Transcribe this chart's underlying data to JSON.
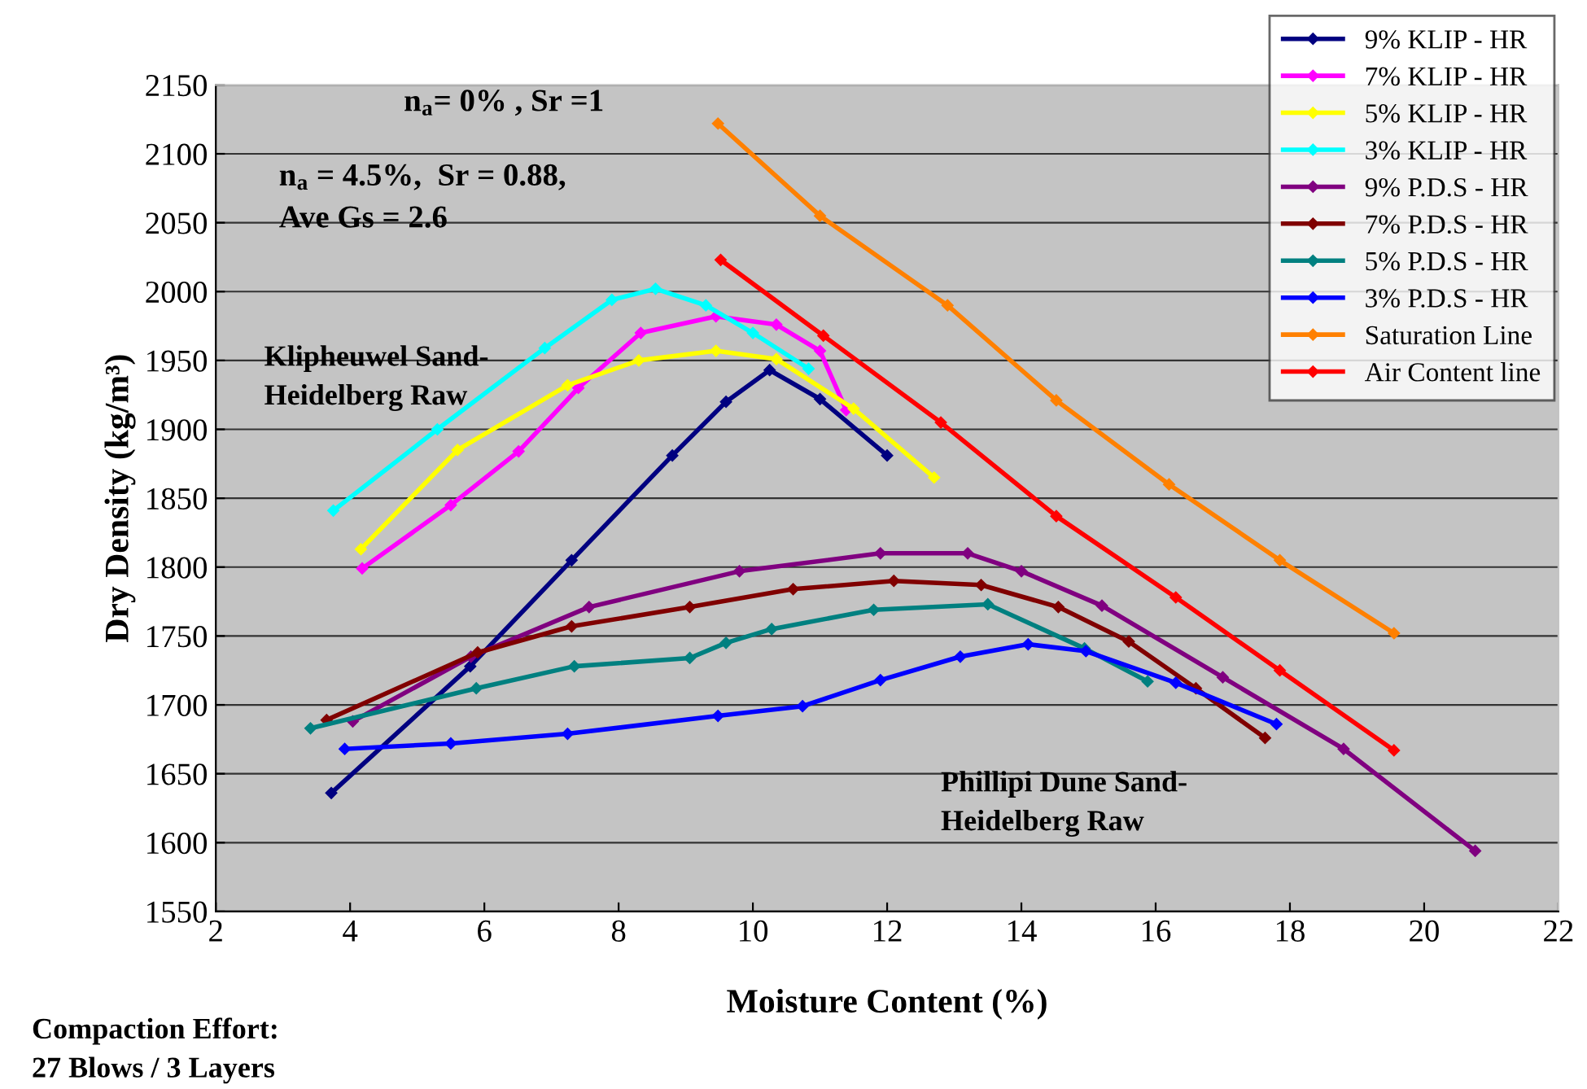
{
  "chart_data": {
    "type": "line",
    "xlabel": "Moisture Content (%)",
    "ylabel": "Dry Density (kg/m³)",
    "xlim": [
      2,
      22
    ],
    "xticks": [
      2,
      4,
      6,
      8,
      10,
      12,
      14,
      16,
      18,
      20,
      22
    ],
    "ylim": [
      1550,
      2150
    ],
    "yticks": [
      1550,
      1600,
      1650,
      1700,
      1750,
      1800,
      1850,
      1900,
      1950,
      2000,
      2050,
      2100,
      2150
    ],
    "grid": "y",
    "legend": "top right",
    "marker": "diamond",
    "line_style": "solid",
    "annotations": [
      "n$_{a}$= 0% , Sr =1",
      "n$_{a}$ = 4.5%,  Sr = 0.88,\nAve Gs = 2.6",
      "Klipheuwel Sand-\nHeidelberg Raw",
      "Phillipi Dune Sand-\nHeidelberg Raw",
      "Compaction Effort:\n27 Blows / 3 Layers"
    ],
    "series": [
      {
        "name": "9% KLIP - HR",
        "color": "#000080",
        "x": [
          3.72,
          5.79,
          7.3,
          8.8,
          9.6,
          10.25,
          11.0,
          12.0
        ],
        "values": [
          1636,
          1728,
          1805,
          1881,
          1920,
          1943,
          1922,
          1881
        ]
      },
      {
        "name": "7% KLIP - HR",
        "color": "#ff00ff",
        "x": [
          4.18,
          5.5,
          6.51,
          7.4,
          8.33,
          9.45,
          10.35,
          11.0,
          11.39
        ],
        "values": [
          1799,
          1845,
          1884,
          1930,
          1970,
          1982,
          1976,
          1957,
          1914
        ]
      },
      {
        "name": "5% KLIP - HR",
        "color": "#ffff00",
        "x": [
          4.16,
          5.6,
          7.24,
          8.3,
          9.45,
          10.35,
          11.5,
          12.7
        ],
        "values": [
          1813,
          1885,
          1932,
          1950,
          1957,
          1951,
          1915,
          1865
        ]
      },
      {
        "name": "3% KLIP - HR",
        "color": "#00ffff",
        "x": [
          3.75,
          5.3,
          6.9,
          7.9,
          8.55,
          9.3,
          10.0,
          10.83
        ],
        "values": [
          1841,
          1900,
          1959,
          1994,
          2002,
          1990,
          1970,
          1944
        ]
      },
      {
        "name": "9% P.D.S - HR",
        "color": "#800080",
        "x": [
          4.04,
          5.8,
          7.56,
          9.8,
          11.9,
          13.2,
          14.0,
          15.2,
          17.0,
          18.8,
          20.76
        ],
        "values": [
          1688,
          1735,
          1771,
          1797,
          1810,
          1810,
          1797,
          1772,
          1720,
          1668,
          1594
        ]
      },
      {
        "name": "7% P.D.S - HR",
        "color": "#800000",
        "x": [
          3.65,
          5.9,
          7.3,
          9.06,
          10.6,
          12.1,
          13.4,
          14.55,
          15.6,
          16.6,
          17.63
        ],
        "values": [
          1689,
          1738,
          1757,
          1771,
          1784,
          1790,
          1787,
          1771,
          1746,
          1712,
          1676
        ]
      },
      {
        "name": "5% P.D.S - HR",
        "color": "#008080",
        "x": [
          3.41,
          5.88,
          7.34,
          9.06,
          9.6,
          10.28,
          11.8,
          13.5,
          14.94,
          15.88
        ],
        "values": [
          1683,
          1712,
          1728,
          1734,
          1745,
          1755,
          1769,
          1773,
          1741,
          1717
        ]
      },
      {
        "name": "3% P.D.S - HR",
        "color": "#0000ff",
        "x": [
          3.92,
          5.5,
          7.24,
          9.48,
          10.74,
          11.9,
          13.09,
          14.1,
          14.96,
          16.3,
          17.8
        ],
        "values": [
          1668,
          1672,
          1679,
          1692,
          1699,
          1718,
          1735,
          1744,
          1739,
          1716,
          1686
        ]
      },
      {
        "name": "Saturation Line",
        "color": "#ff8000",
        "x": [
          9.48,
          11.0,
          12.9,
          14.52,
          16.2,
          17.85,
          19.55
        ],
        "values": [
          2122,
          2055,
          1990,
          1921,
          1860,
          1805,
          1752
        ]
      },
      {
        "name": "Air Content line",
        "color": "#ff0000",
        "x": [
          9.52,
          11.05,
          12.8,
          14.52,
          16.3,
          17.85,
          19.55
        ],
        "values": [
          2023,
          1968,
          1905,
          1837,
          1778,
          1725,
          1667
        ]
      }
    ]
  }
}
